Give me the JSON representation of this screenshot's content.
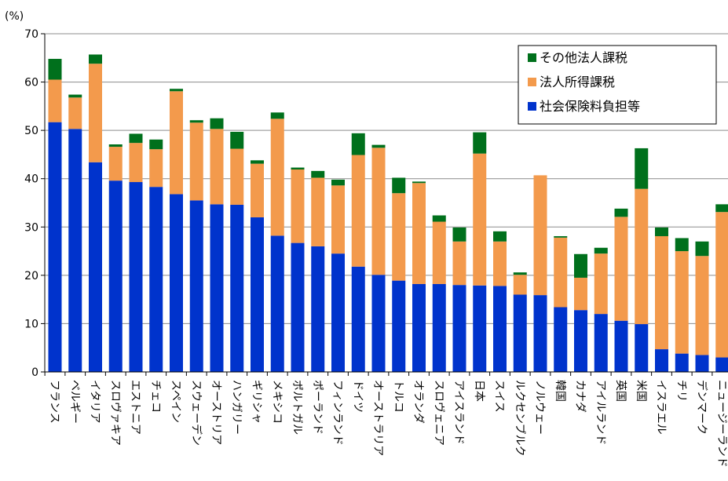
{
  "chart_data": {
    "type": "bar",
    "stacked": true,
    "unit_label": "(%)",
    "ylim": [
      0,
      70
    ],
    "yticks": [
      0,
      10,
      20,
      30,
      40,
      50,
      60,
      70
    ],
    "grid": true,
    "legend_position": "top-right",
    "categories": [
      "フランス",
      "ベルギー",
      "イタリア",
      "スロヴァキア",
      "エストニア",
      "チェコ",
      "スペイン",
      "スウェーデン",
      "オーストリア",
      "ハンガリー",
      "ギリシャ",
      "メキシコ",
      "ポルトガル",
      "ポーランド",
      "フィンランド",
      "ドイツ",
      "オーストラリア",
      "トルコ",
      "オランダ",
      "スロヴェニア",
      "アイスランド",
      "日本",
      "スイス",
      "ルクセンブルク",
      "ノルウェー",
      "韓国",
      "カナダ",
      "アイルランド",
      "英国",
      "米国",
      "イスラエル",
      "チリ",
      "デンマーク",
      "ニュージーランド"
    ],
    "series": [
      {
        "name": "社会保険料負担等",
        "color": "#0033cc",
        "values": [
          51.7,
          50.3,
          43.4,
          39.6,
          39.3,
          38.3,
          36.8,
          35.5,
          34.7,
          34.6,
          32.0,
          28.2,
          26.7,
          26.0,
          24.5,
          21.8,
          20.1,
          18.9,
          18.2,
          18.2,
          18.0,
          17.9,
          17.8,
          16.0,
          15.9,
          13.4,
          12.8,
          12.0,
          10.6,
          9.9,
          4.7,
          3.8,
          3.5,
          3.0
        ]
      },
      {
        "name": "法人所得課税",
        "color": "#f39a4c",
        "values": [
          8.8,
          6.5,
          20.4,
          7.0,
          8.1,
          7.8,
          21.3,
          16.1,
          15.6,
          11.6,
          11.1,
          24.2,
          15.2,
          14.2,
          14.1,
          23.1,
          26.3,
          18.1,
          20.9,
          12.9,
          9.0,
          27.3,
          9.2,
          4.1,
          24.8,
          14.4,
          6.7,
          12.5,
          21.5,
          28.0,
          23.4,
          21.2,
          20.5,
          30.1
        ]
      },
      {
        "name": "その他法人課税",
        "color": "#00701c",
        "values": [
          4.3,
          0.6,
          1.9,
          0.5,
          1.9,
          2.0,
          0.5,
          0.5,
          2.2,
          3.5,
          0.7,
          1.3,
          0.4,
          1.4,
          1.2,
          4.5,
          0.6,
          3.2,
          0.3,
          1.3,
          2.9,
          4.4,
          2.1,
          0.5,
          0.0,
          0.3,
          4.9,
          1.2,
          1.7,
          8.4,
          1.8,
          2.7,
          3.0,
          1.6
        ]
      }
    ]
  }
}
